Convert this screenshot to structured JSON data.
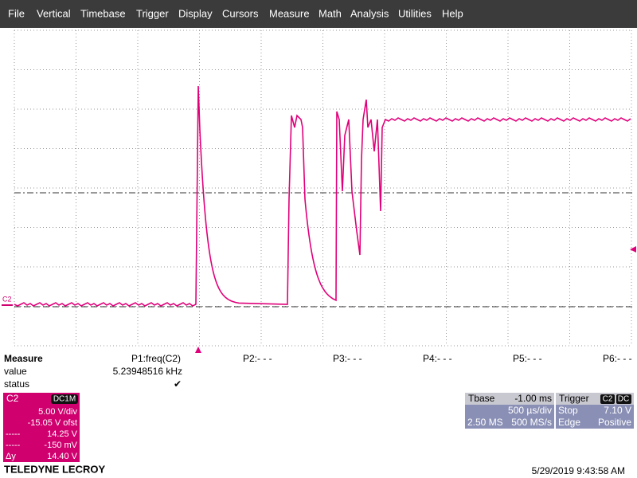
{
  "menu": [
    "File",
    "Vertical",
    "Timebase",
    "Trigger",
    "Display",
    "Cursors",
    "Measure",
    "Math",
    "Analysis",
    "Utilities",
    "Help"
  ],
  "plot": {
    "channel_marker": "C2"
  },
  "measure": {
    "title": "Measure",
    "row_labels": [
      "value",
      "status"
    ],
    "params": [
      {
        "name": "P1:freq(C2)",
        "value": "5.23948516 kHz",
        "status": "✔"
      },
      {
        "name": "P2:- - -"
      },
      {
        "name": "P3:- - -"
      },
      {
        "name": "P4:- - -"
      },
      {
        "name": "P5:- - -"
      },
      {
        "name": "P6:- - -"
      }
    ]
  },
  "channel": {
    "name": "C2",
    "coupling": "DC1M",
    "rows": [
      {
        "value": "5.00 V/div"
      },
      {
        "value": "-15.05 V ofst"
      },
      {
        "label": "-----",
        "value": "14.25 V"
      },
      {
        "label": "-----",
        "value": "-150 mV"
      },
      {
        "label": "Δy",
        "value": "14.40 V"
      }
    ]
  },
  "timebase": {
    "title": "Tbase",
    "delay": "-1.00 ms",
    "scale": "500 µs/div",
    "samples": "2.50 MS",
    "rate": "500 MS/s"
  },
  "trigger": {
    "title": "Trigger",
    "source": "C2",
    "coupling": "DC",
    "mode": "Stop",
    "level": "7.10 V",
    "type": "Edge",
    "slope": "Positive"
  },
  "footer": {
    "brand": "TELEDYNE LECROY",
    "timestamp": "5/29/2019 9:43:58 AM"
  }
}
